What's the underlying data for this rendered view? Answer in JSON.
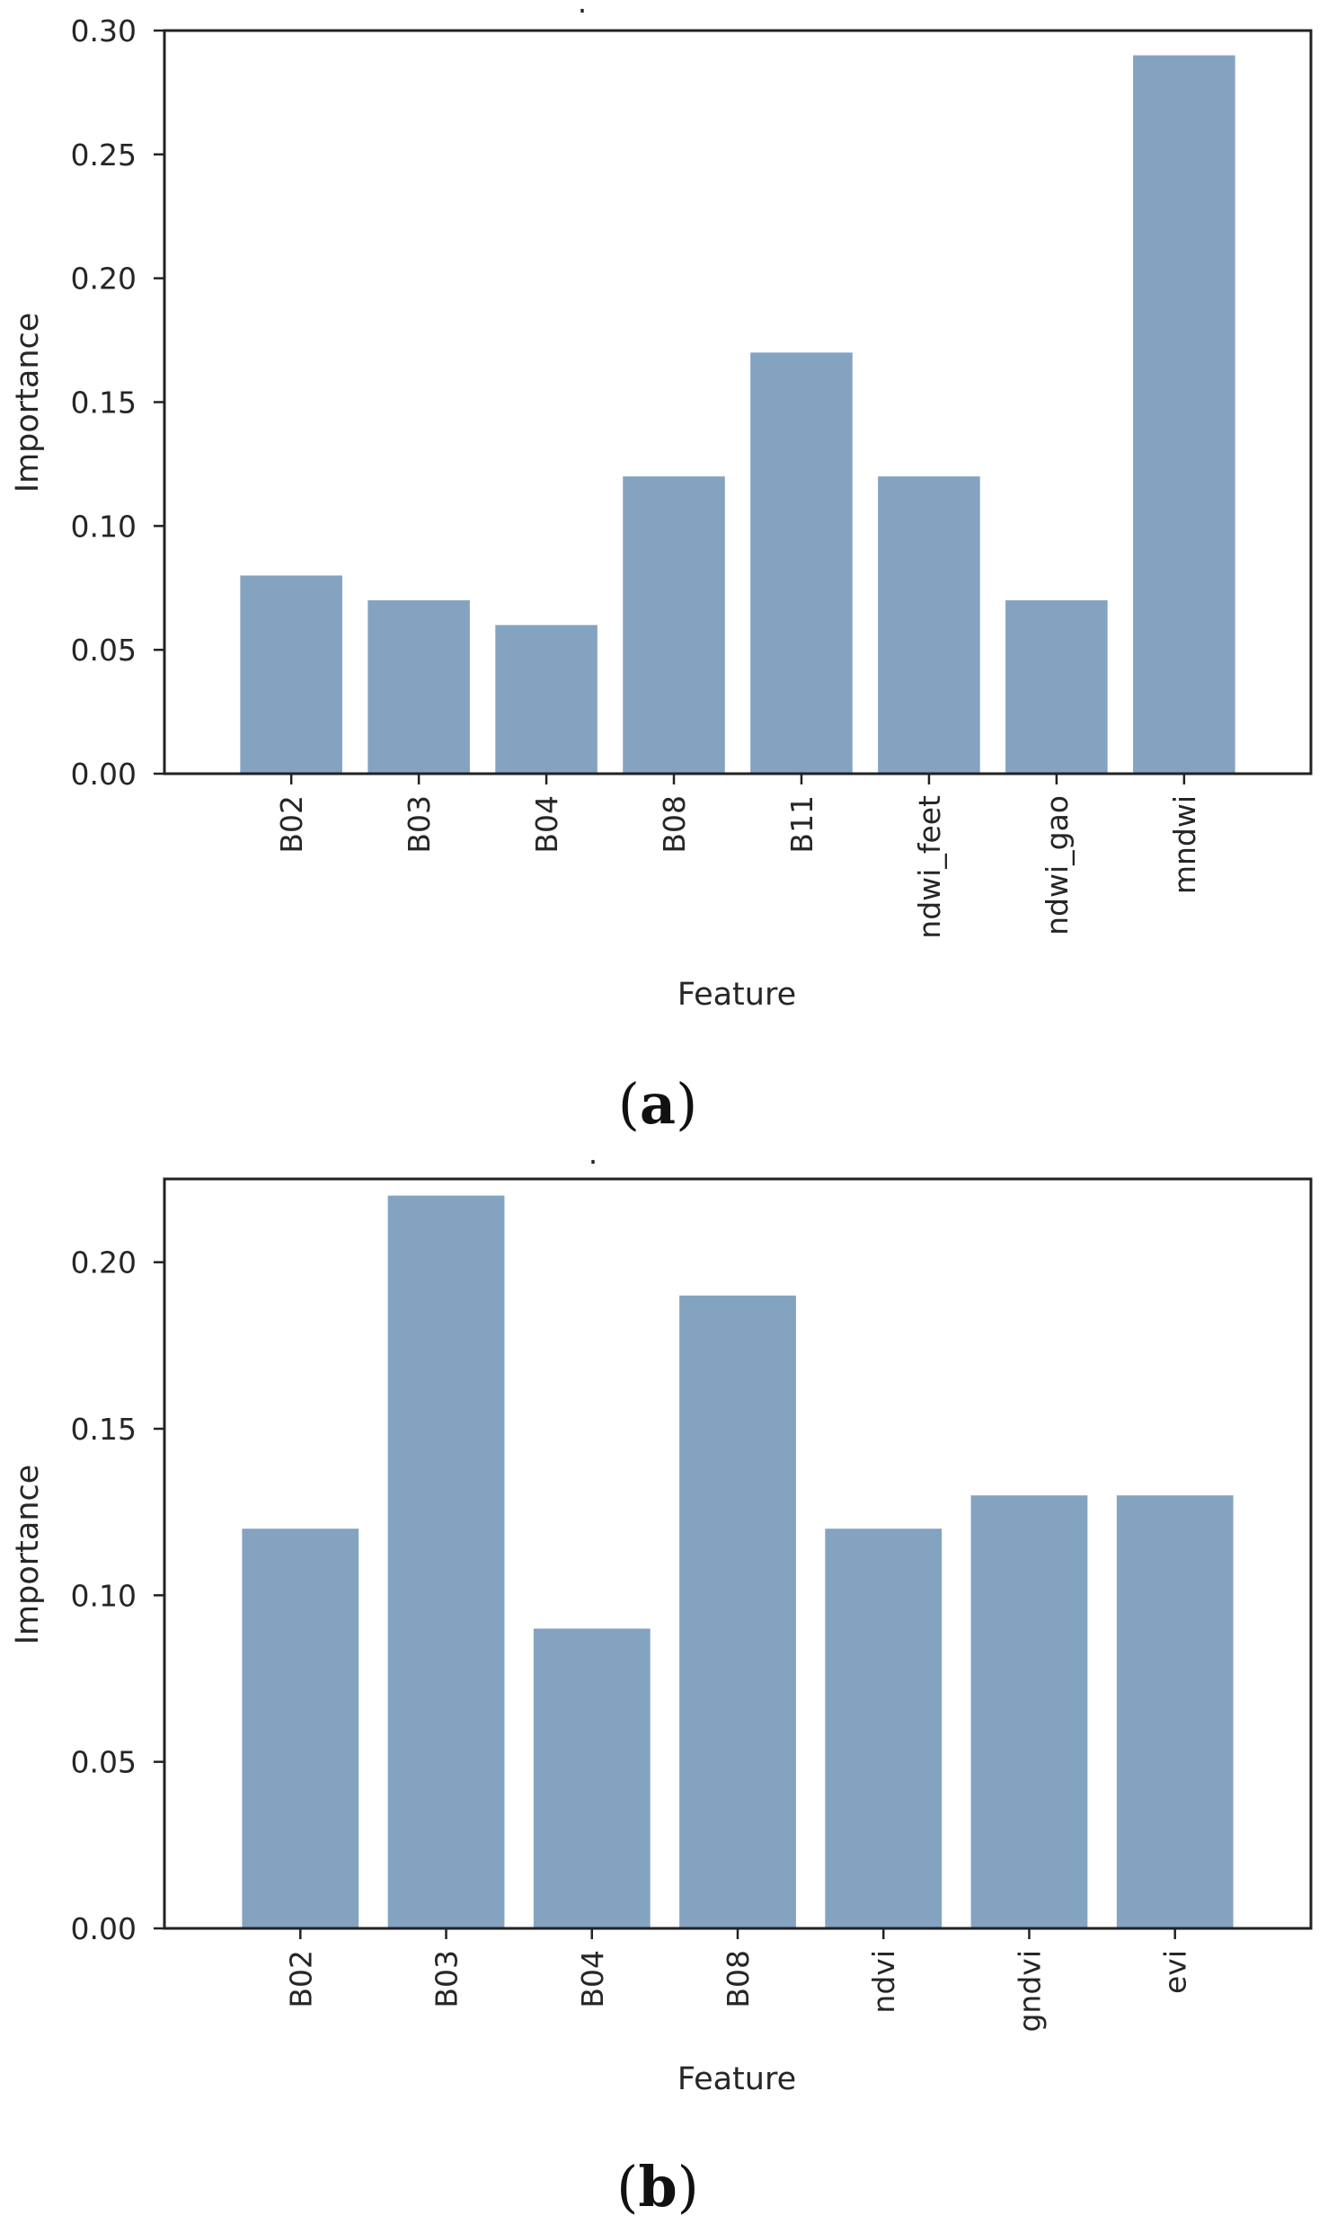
{
  "chart_data": [
    {
      "type": "bar",
      "title": ".",
      "categories": [
        "B02",
        "B03",
        "B04",
        "B08",
        "B11",
        "ndwi_feet",
        "ndwi_gao",
        "mndwi"
      ],
      "values": [
        0.08,
        0.07,
        0.06,
        0.12,
        0.17,
        0.12,
        0.07,
        0.29
      ],
      "xlabel": "Feature",
      "ylabel": "Importance",
      "ylim": [
        0,
        0.3
      ],
      "yticks": [
        "0.00",
        "0.05",
        "0.10",
        "0.15",
        "0.20",
        "0.25",
        "0.30"
      ],
      "grid": false,
      "bar_color": "#84a3c1",
      "caption_open": "(",
      "caption_letter": "a",
      "caption_close": ")"
    },
    {
      "type": "bar",
      "title": ".",
      "categories": [
        "B02",
        "B03",
        "B04",
        "B08",
        "ndvi",
        "gndvi",
        "evi"
      ],
      "values": [
        0.12,
        0.22,
        0.09,
        0.19,
        0.12,
        0.13,
        0.13
      ],
      "xlabel": "Feature",
      "ylabel": "Importance",
      "ylim": [
        0,
        0.225
      ],
      "yticks": [
        "0.00",
        "0.05",
        "0.10",
        "0.15",
        "0.20"
      ],
      "grid": false,
      "bar_color": "#84a3c1",
      "caption_open": "(",
      "caption_letter": "b",
      "caption_close": ")"
    }
  ]
}
